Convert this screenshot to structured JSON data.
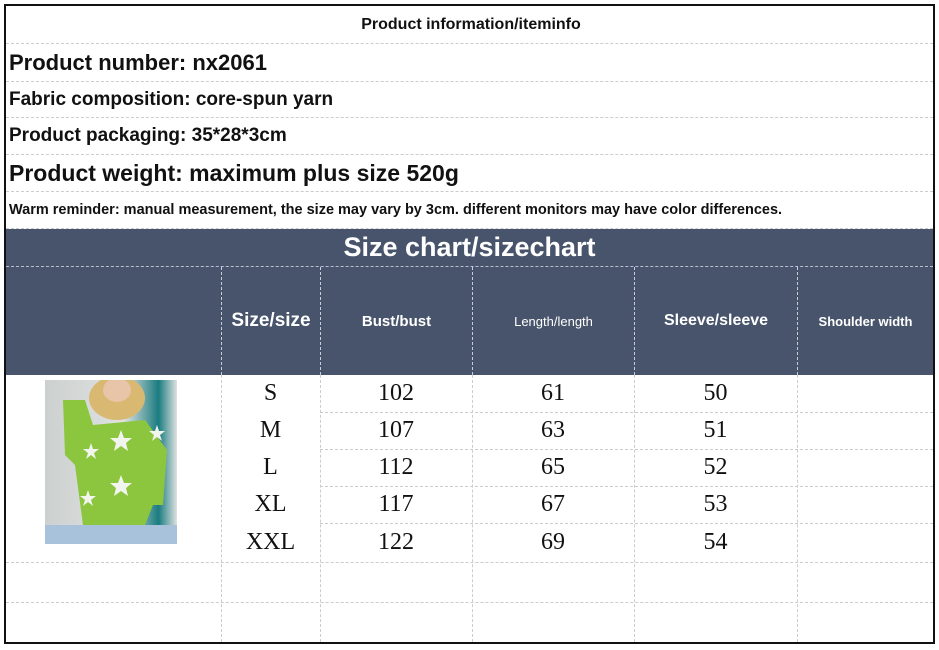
{
  "info": {
    "title": "Product information/iteminfo",
    "product_number": "Product number: nx2061",
    "fabric": "Fabric composition: core-spun yarn",
    "packaging": "Product packaging: 35*28*3cm",
    "weight": "Product weight: maximum plus size 520g",
    "reminder": "Warm reminder: manual measurement, the size may vary by 3cm. different monitors may have color differences."
  },
  "size_chart": {
    "title": "Size chart/sizechart",
    "header_color": "#47546b",
    "columns": [
      "Size/size",
      "Bust/bust",
      "Length/length",
      "Sleeve/sleeve",
      "Shoulder width"
    ],
    "rows": [
      [
        "S",
        "102",
        "61",
        "50",
        ""
      ],
      [
        "M",
        "107",
        "63",
        "51",
        ""
      ],
      [
        "L",
        "112",
        "65",
        "52",
        ""
      ],
      [
        "XL",
        "117",
        "67",
        "53",
        ""
      ],
      [
        "XXL",
        "122",
        "69",
        "54",
        ""
      ]
    ]
  },
  "image": {
    "subject": "green star sweater",
    "sweater_color": "#8cc63f"
  }
}
